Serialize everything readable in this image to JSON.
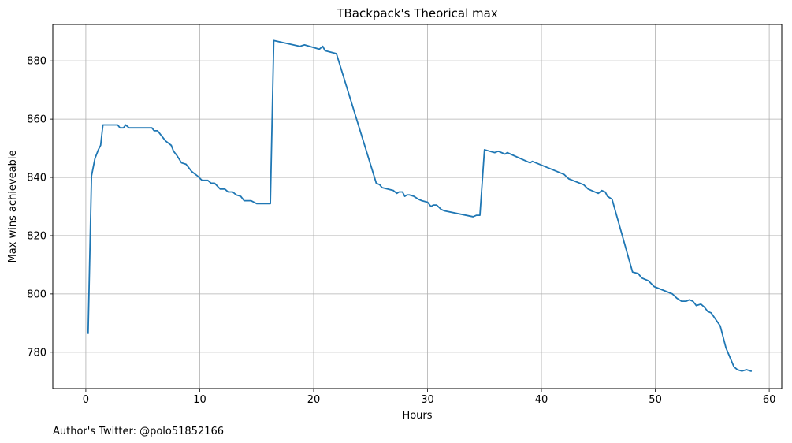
{
  "chart_data": {
    "type": "line",
    "title": "TBackpack's Theorical max",
    "xlabel": "Hours",
    "ylabel": "Max wins achieveable",
    "xlim": [
      -2.9,
      61.1
    ],
    "ylim": [
      767.5,
      892.5
    ],
    "xticks": [
      0,
      10,
      20,
      30,
      40,
      50,
      60
    ],
    "yticks": [
      780,
      800,
      820,
      840,
      860,
      880
    ],
    "grid": true,
    "line_color": "#1f77b4",
    "series": [
      {
        "x": [
          0.2,
          0.5,
          0.8,
          1.1,
          1.3,
          1.5,
          2.0,
          2.8,
          3.0,
          3.3,
          3.5,
          3.8,
          4.0,
          5.0,
          5.8,
          6.0,
          6.3,
          6.7,
          7.0,
          7.5,
          7.7,
          8.0,
          8.4,
          8.8,
          9.0,
          9.3,
          9.8,
          10.2,
          10.7,
          11.0,
          11.3,
          11.8,
          12.2,
          12.5,
          12.9,
          13.2,
          13.6,
          13.9,
          14.3,
          14.5,
          15.0,
          16.2,
          16.5,
          18.8,
          19.2,
          20.5,
          20.8,
          21.0,
          22.0,
          25.5,
          25.8,
          26.0,
          27.0,
          27.3,
          27.5,
          27.8,
          28.0,
          28.2,
          28.4,
          28.8,
          29.2,
          29.5,
          30.0,
          30.3,
          30.5,
          30.8,
          31.2,
          31.5,
          34.0,
          34.3,
          34.6,
          35.0,
          35.9,
          36.2,
          36.8,
          37.0,
          39.0,
          39.2,
          42.0,
          42.4,
          43.7,
          44.1,
          44.7,
          45.0,
          45.3,
          45.6,
          45.8,
          46.2,
          48.0,
          48.5,
          48.8,
          49.4,
          49.9,
          51.5,
          51.9,
          52.3,
          52.7,
          53.0,
          53.3,
          53.6,
          54.0,
          54.3,
          54.6,
          54.9,
          55.7,
          56.2,
          56.9,
          57.2,
          57.6,
          58.0,
          58.4
        ],
        "y": [
          786.5,
          840.5,
          846.5,
          849.5,
          851,
          858,
          858,
          858,
          857,
          857,
          858,
          857,
          857,
          857,
          857,
          856,
          856,
          854,
          852.5,
          851,
          849,
          847.5,
          845,
          844.5,
          843.5,
          842,
          840.5,
          839,
          839,
          838,
          838,
          836,
          836,
          835,
          835,
          834,
          833.5,
          832,
          832,
          832,
          831,
          831,
          887,
          885,
          885.5,
          884,
          885,
          883.5,
          882.5,
          838,
          837.5,
          836.5,
          835.5,
          834.5,
          835,
          835,
          833.5,
          834,
          834,
          833.5,
          832.5,
          832,
          831.5,
          830,
          830.5,
          830.5,
          829,
          828.5,
          826.5,
          827,
          827,
          849.5,
          848.5,
          849,
          848,
          848.5,
          845,
          845.5,
          841,
          839.5,
          837.5,
          836,
          835,
          834.5,
          835.5,
          835,
          833.5,
          832.5,
          807.5,
          807,
          805.5,
          804.5,
          802.5,
          800,
          798.5,
          797.5,
          797.5,
          798,
          797.5,
          796,
          796.5,
          795.5,
          794,
          793.5,
          789,
          781.5,
          775,
          774,
          773.5,
          774,
          773.5
        ]
      }
    ]
  },
  "footer": {
    "text": "Author's Twitter: @polo51852166"
  }
}
